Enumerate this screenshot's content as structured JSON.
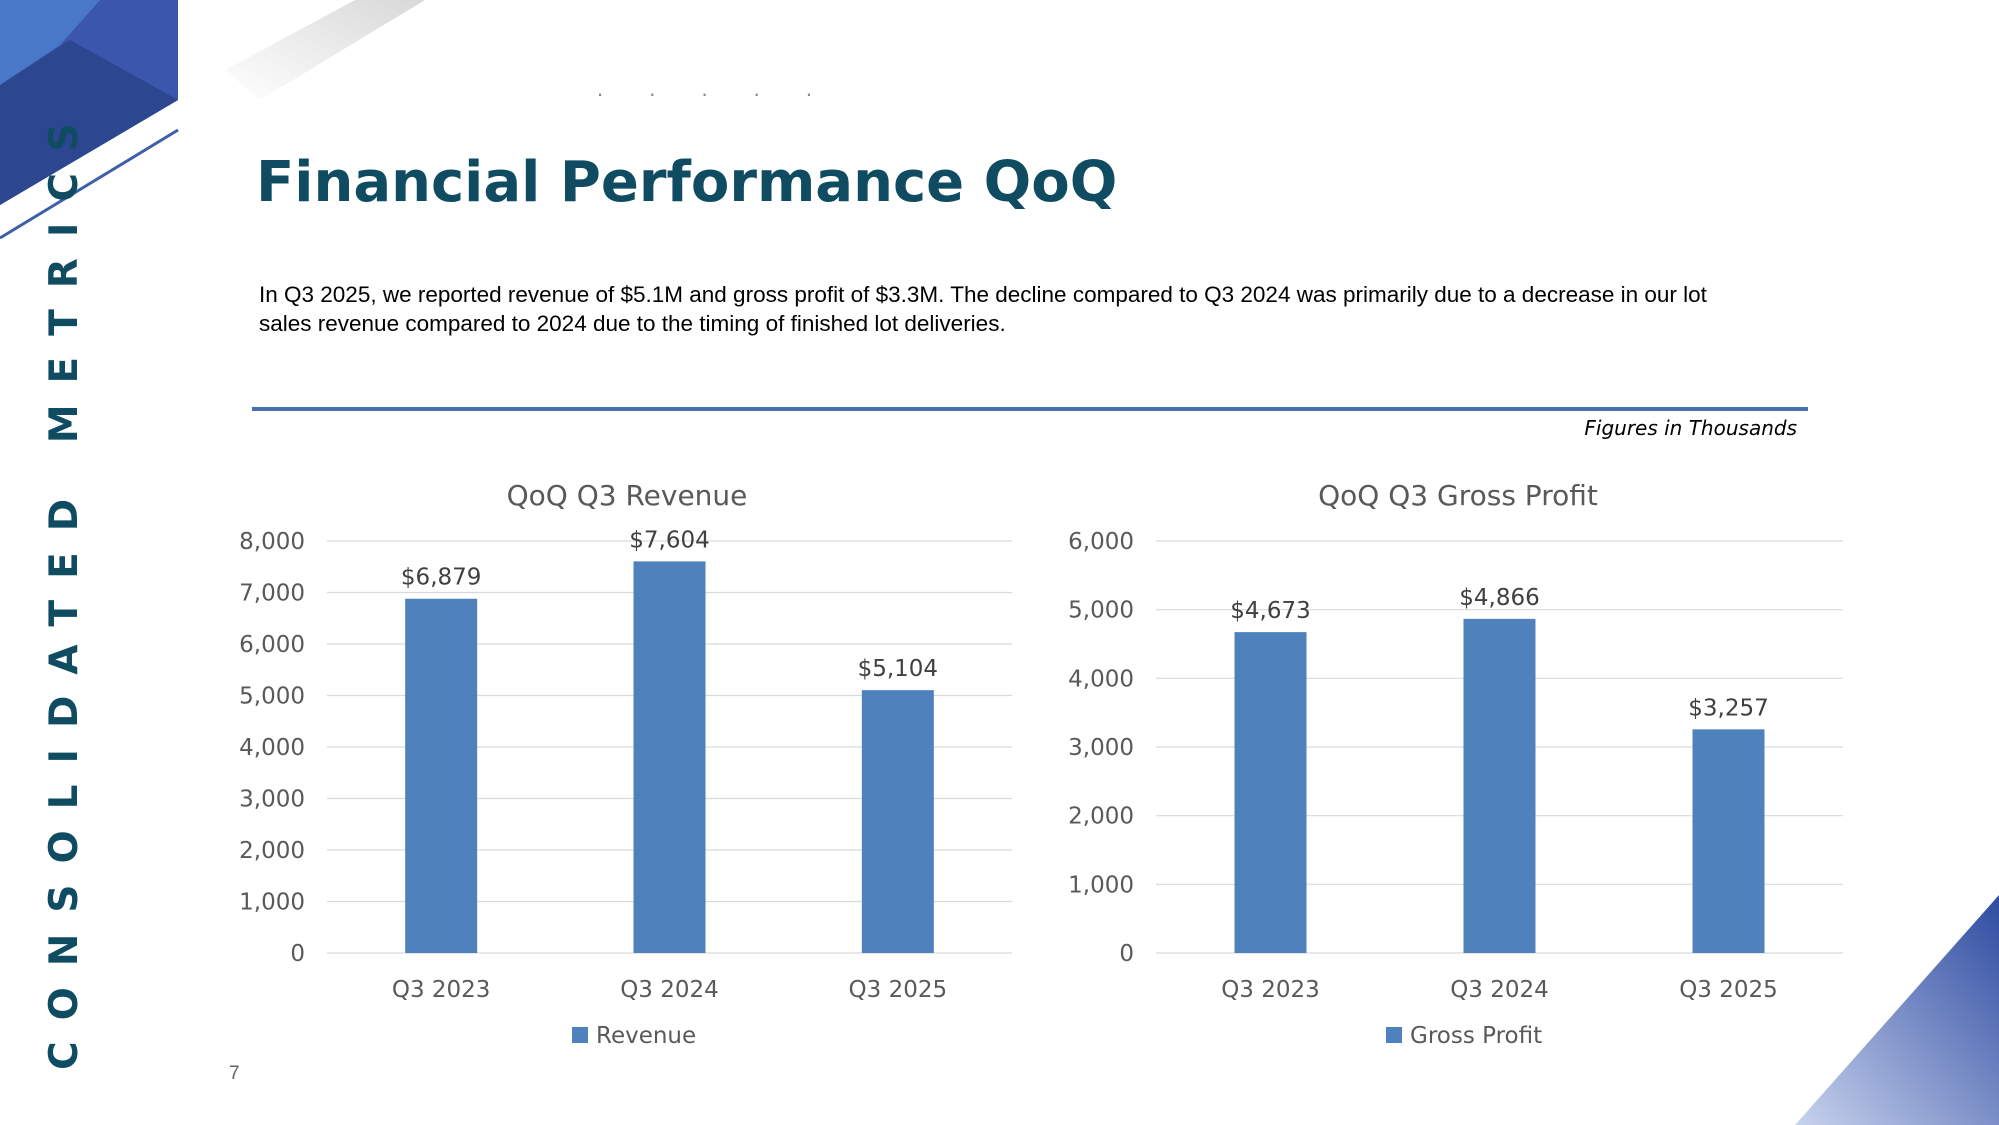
{
  "section_label": "CONSOLIDATED METRICS",
  "dots": ". . . . .",
  "title": "Financial Performance QoQ",
  "description": "In Q3 2025, we reported revenue of $5.1M and gross profit of $3.3M.  The decline compared to Q3 2024 was primarily due to a decrease in our lot sales revenue compared to 2024 due to the timing of finished lot deliveries.",
  "figures_note": "Figures in Thousands",
  "page_number": "7",
  "colors": {
    "bar": "#4f81bd",
    "title": "#0f4c61",
    "accent": "#3f5fa8"
  },
  "chart_data": [
    {
      "type": "bar",
      "title": "QoQ Q3 Revenue",
      "categories": [
        "Q3 2023",
        "Q3 2024",
        "Q3 2025"
      ],
      "series": [
        {
          "name": "Revenue",
          "values": [
            6879,
            7604,
            5104
          ]
        }
      ],
      "data_labels": [
        "$6,879",
        "$7,604",
        "$5,104"
      ],
      "ylim": [
        0,
        8000
      ],
      "yticks": [
        0,
        1000,
        2000,
        3000,
        4000,
        5000,
        6000,
        7000,
        8000
      ],
      "ytick_labels": [
        "0",
        "1,000",
        "2,000",
        "3,000",
        "4,000",
        "5,000",
        "6,000",
        "7,000",
        "8,000"
      ],
      "legend": "bottom",
      "grid": true
    },
    {
      "type": "bar",
      "title": "QoQ Q3 Gross Profit",
      "categories": [
        "Q3 2023",
        "Q3 2024",
        "Q3 2025"
      ],
      "series": [
        {
          "name": "Gross Profit",
          "values": [
            4673,
            4866,
            3257
          ]
        }
      ],
      "data_labels": [
        "$4,673",
        "$4,866",
        "$3,257"
      ],
      "ylim": [
        0,
        6000
      ],
      "yticks": [
        0,
        1000,
        2000,
        3000,
        4000,
        5000,
        6000
      ],
      "ytick_labels": [
        "0",
        "1,000",
        "2,000",
        "3,000",
        "4,000",
        "5,000",
        "6,000"
      ],
      "legend": "bottom",
      "grid": true
    }
  ]
}
